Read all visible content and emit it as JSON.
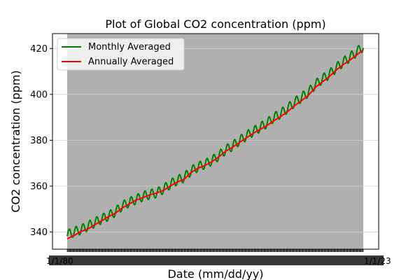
{
  "chart_data": {
    "type": "line",
    "title": "Plot of Global CO2 concentration (ppm)",
    "xlabel": "Date (mm/dd/yy)",
    "ylabel": "CO2 concentration (ppm)",
    "x_start": "1/1/80",
    "x_end": "1/1/23",
    "ylim": [
      332.5,
      426.5
    ],
    "yticks": [
      340,
      360,
      380,
      400,
      420
    ],
    "grid": true,
    "legend_position": "top-left",
    "colors": {
      "plot_background": "#b0b0b0",
      "grid": "#d0d0d0",
      "monthly": "#008000",
      "annual": "#ff0000"
    },
    "series": [
      {
        "name": "Monthly Averaged",
        "color": "#008000",
        "seasonal_amplitude_ppm": 2.1,
        "points": [
          [
            1980,
            338.8
          ],
          [
            1981,
            340.1
          ],
          [
            1982,
            341.0
          ],
          [
            1983,
            342.6
          ],
          [
            1984,
            344.1
          ],
          [
            1985,
            345.7
          ],
          [
            1986,
            347.0
          ],
          [
            1987,
            348.8
          ],
          [
            1988,
            351.4
          ],
          [
            1989,
            352.9
          ],
          [
            1990,
            354.2
          ],
          [
            1991,
            355.6
          ],
          [
            1992,
            356.4
          ],
          [
            1993,
            357.0
          ],
          [
            1994,
            358.8
          ],
          [
            1995,
            360.9
          ],
          [
            1996,
            362.6
          ],
          [
            1997,
            363.8
          ],
          [
            1998,
            366.7
          ],
          [
            1999,
            368.4
          ],
          [
            2000,
            369.6
          ],
          [
            2001,
            371.1
          ],
          [
            2002,
            373.2
          ],
          [
            2003,
            375.8
          ],
          [
            2004,
            377.5
          ],
          [
            2005,
            379.8
          ],
          [
            2006,
            381.9
          ],
          [
            2007,
            383.8
          ],
          [
            2008,
            385.6
          ],
          [
            2009,
            387.4
          ],
          [
            2010,
            389.9
          ],
          [
            2011,
            391.6
          ],
          [
            2012,
            393.9
          ],
          [
            2013,
            396.5
          ],
          [
            2014,
            398.6
          ],
          [
            2015,
            400.8
          ],
          [
            2016,
            404.2
          ],
          [
            2017,
            406.6
          ],
          [
            2018,
            408.6
          ],
          [
            2019,
            411.4
          ],
          [
            2020,
            413.9
          ],
          [
            2021,
            416.1
          ],
          [
            2022,
            418.4
          ],
          [
            2023,
            420.9
          ]
        ]
      },
      {
        "name": "Annually Averaged",
        "color": "#ff0000",
        "points": [
          [
            1980,
            337.0
          ],
          [
            1981,
            338.5
          ],
          [
            1982,
            340.2
          ],
          [
            1983,
            341.3
          ],
          [
            1984,
            343.1
          ],
          [
            1985,
            344.9
          ],
          [
            1986,
            346.7
          ],
          [
            1987,
            348.2
          ],
          [
            1988,
            350.5
          ],
          [
            1989,
            352.2
          ],
          [
            1990,
            353.9
          ],
          [
            1991,
            355.0
          ],
          [
            1992,
            356.2
          ],
          [
            1993,
            357.0
          ],
          [
            1994,
            358.2
          ],
          [
            1995,
            360.1
          ],
          [
            1996,
            361.8
          ],
          [
            1997,
            363.0
          ],
          [
            1998,
            366.0
          ],
          [
            1999,
            367.8
          ],
          [
            2000,
            369.0
          ],
          [
            2001,
            370.6
          ],
          [
            2002,
            372.7
          ],
          [
            2003,
            375.2
          ],
          [
            2004,
            376.9
          ],
          [
            2005,
            379.0
          ],
          [
            2006,
            381.0
          ],
          [
            2007,
            383.0
          ],
          [
            2008,
            384.7
          ],
          [
            2009,
            386.4
          ],
          [
            2010,
            388.5
          ],
          [
            2011,
            390.3
          ],
          [
            2012,
            392.5
          ],
          [
            2013,
            395.0
          ],
          [
            2014,
            397.2
          ],
          [
            2015,
            399.5
          ],
          [
            2016,
            402.9
          ],
          [
            2017,
            405.3
          ],
          [
            2018,
            407.6
          ],
          [
            2019,
            410.4
          ],
          [
            2020,
            412.8
          ],
          [
            2021,
            414.8
          ],
          [
            2022,
            417.1
          ],
          [
            2023,
            419.4
          ]
        ]
      }
    ]
  }
}
